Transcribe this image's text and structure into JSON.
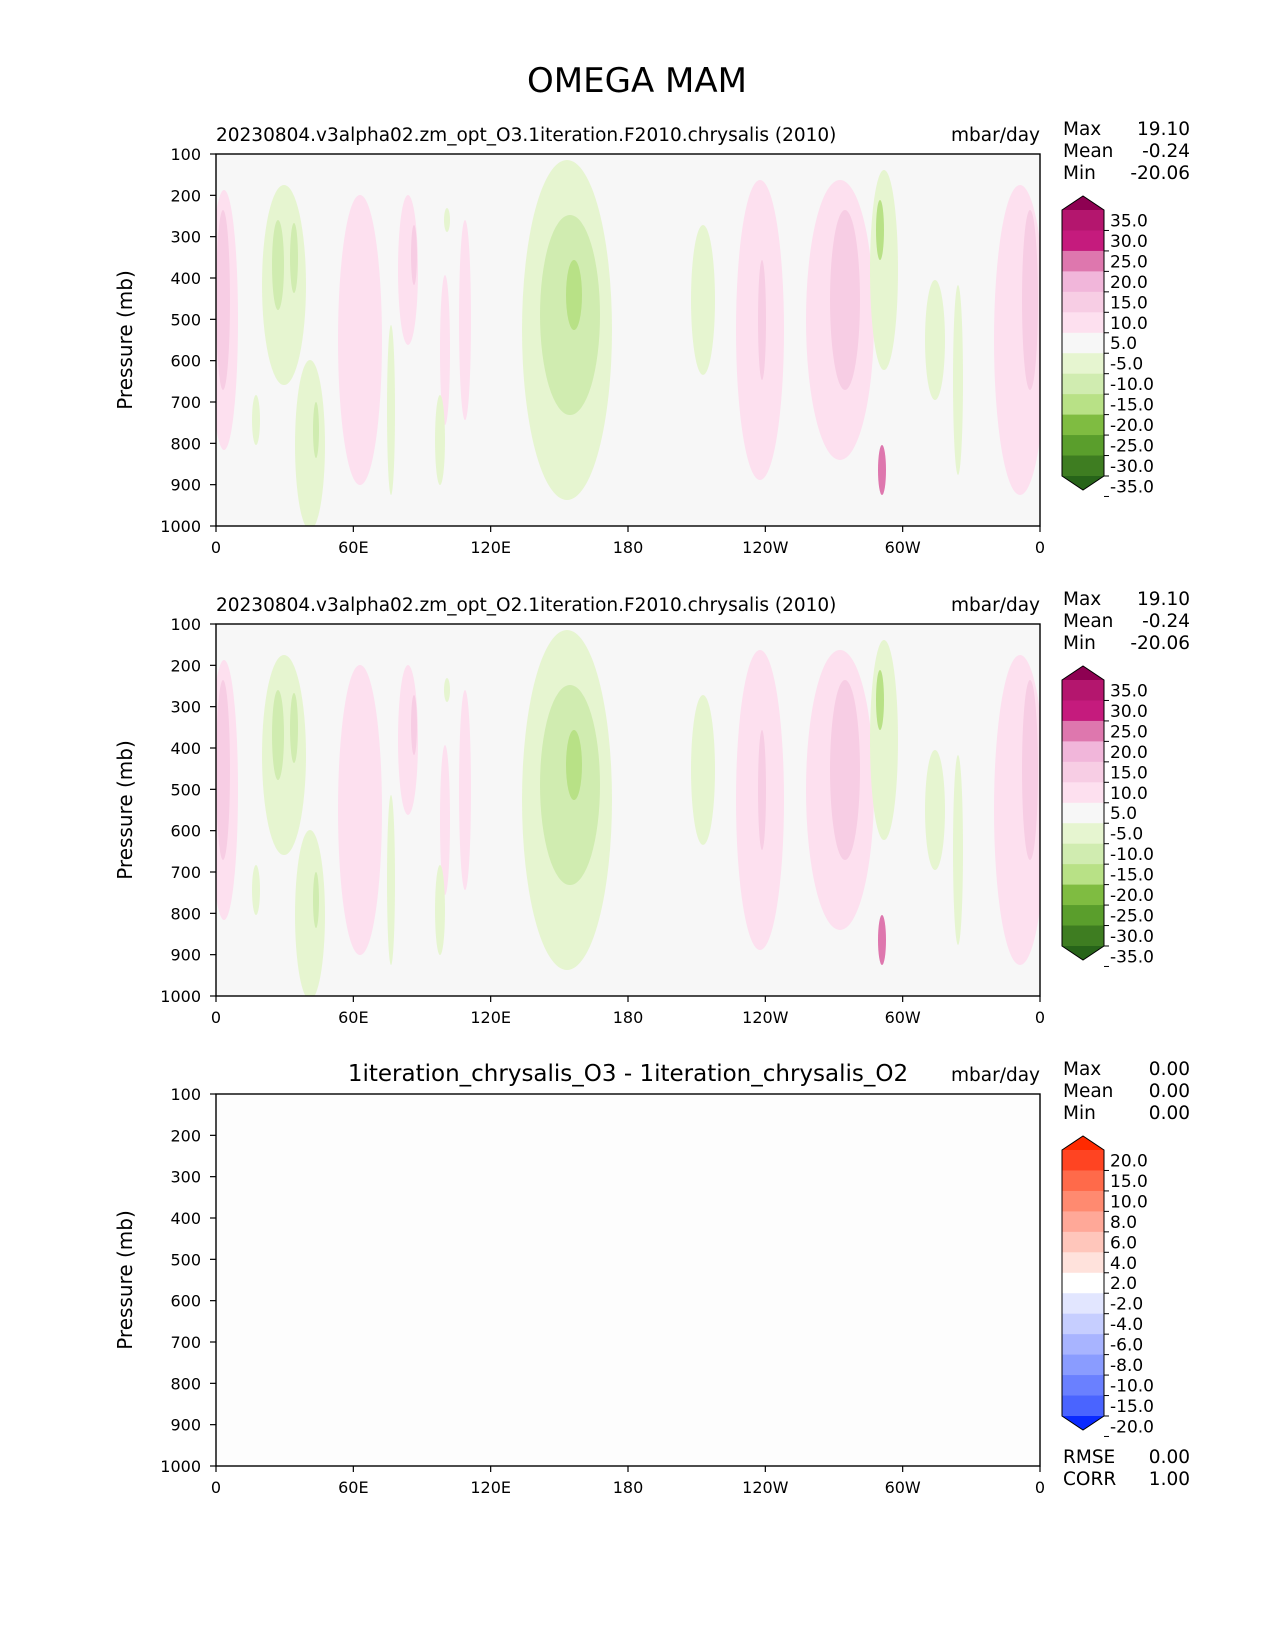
{
  "title": "OMEGA MAM",
  "colors": {
    "panel_bg": "#f7f7f7",
    "pink_light": "#fde0ef",
    "pink_mid": "#f1b6da",
    "pink_dark": "#de77ae",
    "green_light": "#e6f5d0",
    "green_mid": "#b8e186",
    "green_dark": "#7fbc41"
  },
  "chart_data": [
    {
      "type": "contour",
      "title": "20230804.v3alpha02.zm_opt_O3.1iteration.F2010.chrysalis (2010)",
      "units": "mbar/day",
      "ylabel": "Pressure (mb)",
      "x_ticks": [
        "0",
        "60E",
        "120E",
        "180",
        "120W",
        "60W",
        "0"
      ],
      "y_ticks": [
        "100",
        "200",
        "300",
        "400",
        "500",
        "600",
        "700",
        "800",
        "900",
        "1000"
      ],
      "stats": {
        "max_label": "Max",
        "max": "19.10",
        "mean_label": "Mean",
        "mean": "-0.24",
        "min_label": "Min",
        "min": "-20.06"
      },
      "colorbar": {
        "levels": [
          "35.0",
          "30.0",
          "25.0",
          "20.0",
          "15.0",
          "10.0",
          "5.0",
          "-5.0",
          "-10.0",
          "-15.0",
          "-20.0",
          "-25.0",
          "-30.0",
          "-35.0"
        ],
        "colors": [
          "#8e0152",
          "#b4166e",
          "#c51b7d",
          "#de77ae",
          "#f1b6da",
          "#f7cde4",
          "#fde0ef",
          "#f7f7f7",
          "#e6f5d0",
          "#d0ecb0",
          "#b8e186",
          "#7fbc41",
          "#5a9e2c",
          "#3e7d21",
          "#276419"
        ]
      }
    },
    {
      "type": "contour",
      "title": "20230804.v3alpha02.zm_opt_O2.1iteration.F2010.chrysalis (2010)",
      "units": "mbar/day",
      "ylabel": "Pressure (mb)",
      "x_ticks": [
        "0",
        "60E",
        "120E",
        "180",
        "120W",
        "60W",
        "0"
      ],
      "y_ticks": [
        "100",
        "200",
        "300",
        "400",
        "500",
        "600",
        "700",
        "800",
        "900",
        "1000"
      ],
      "stats": {
        "max_label": "Max",
        "max": "19.10",
        "mean_label": "Mean",
        "mean": "-0.24",
        "min_label": "Min",
        "min": "-20.06"
      },
      "colorbar": {
        "levels": [
          "35.0",
          "30.0",
          "25.0",
          "20.0",
          "15.0",
          "10.0",
          "5.0",
          "-5.0",
          "-10.0",
          "-15.0",
          "-20.0",
          "-25.0",
          "-30.0",
          "-35.0"
        ],
        "colors": [
          "#8e0152",
          "#b4166e",
          "#c51b7d",
          "#de77ae",
          "#f1b6da",
          "#f7cde4",
          "#fde0ef",
          "#f7f7f7",
          "#e6f5d0",
          "#d0ecb0",
          "#b8e186",
          "#7fbc41",
          "#5a9e2c",
          "#3e7d21",
          "#276419"
        ]
      }
    },
    {
      "type": "contour",
      "title": "1iteration_chrysalis_O3 - 1iteration_chrysalis_O2",
      "units": "mbar/day",
      "ylabel": "Pressure (mb)",
      "x_ticks": [
        "0",
        "60E",
        "120E",
        "180",
        "120W",
        "60W",
        "0"
      ],
      "y_ticks": [
        "100",
        "200",
        "300",
        "400",
        "500",
        "600",
        "700",
        "800",
        "900",
        "1000"
      ],
      "stats": {
        "max_label": "Max",
        "max": "0.00",
        "mean_label": "Mean",
        "mean": "0.00",
        "min_label": "Min",
        "min": "0.00"
      },
      "metrics": {
        "rmse_label": "RMSE",
        "rmse": "0.00",
        "corr_label": "CORR",
        "corr": "1.00"
      },
      "colorbar": {
        "levels": [
          "20.0",
          "15.0",
          "10.0",
          "8.0",
          "6.0",
          "4.0",
          "2.0",
          "-2.0",
          "-4.0",
          "-6.0",
          "-8.0",
          "-10.0",
          "-15.0",
          "-20.0"
        ],
        "colors": [
          "#ff2a00",
          "#ff4422",
          "#ff6a4a",
          "#ff8a70",
          "#ffa898",
          "#ffc6bb",
          "#ffe2dc",
          "#ffffff",
          "#e2e6ff",
          "#c6ceff",
          "#a8b4ff",
          "#8a9cff",
          "#6a80ff",
          "#4a64ff",
          "#0a2aff"
        ]
      }
    }
  ]
}
